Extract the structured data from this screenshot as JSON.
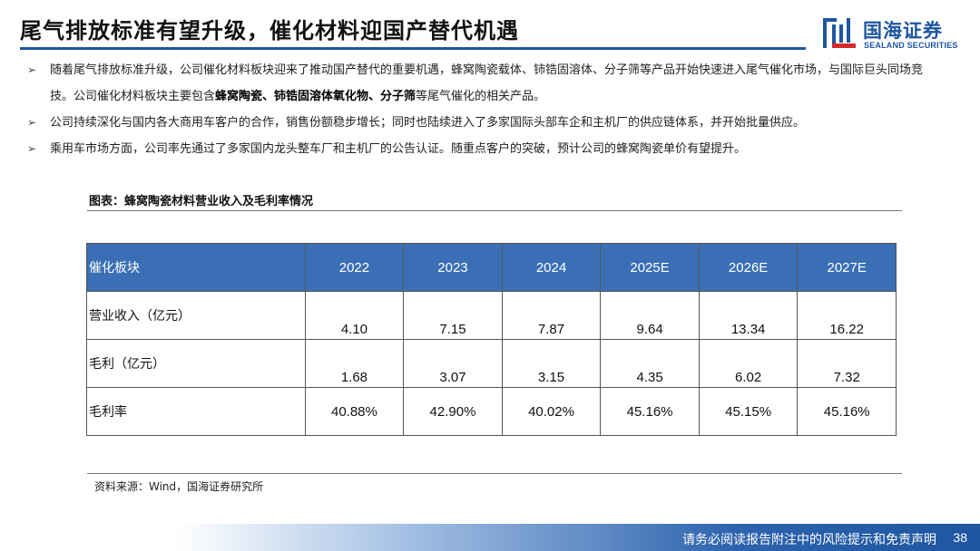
{
  "title": "尾气排放标准有望升级，催化材料迎国产替代机遇",
  "logo": {
    "cn": "国海证券",
    "en": "SEALAND SECURITIES"
  },
  "bullets": [
    {
      "segments": [
        "随着尾气排放标准升级，公司催化材料板块迎来了推动国产替代的重要机遇，蜂窝陶瓷载体、铈锆固溶体、分子筛等产品开始快速进入尾气催化市场，与国际巨头同场竞技。公司催化材料板块主要包含",
        "蜂窝陶瓷、铈锆固溶体氧化物、分子筛",
        "等尾气催化的相关产品。"
      ]
    },
    {
      "text": "公司持续深化与国内各大商用车客户的合作，销售份额稳步增长；同时也陆续进入了多家国际头部车企和主机厂的供应链体系，并开始批量供应。"
    },
    {
      "text": "乘用车市场方面，公司率先通过了多家国内龙头整车厂和主机厂的公告认证。随重点客户的突破，预计公司的蜂窝陶瓷单价有望提升。"
    }
  ],
  "figure_caption": "图表：蜂窝陶瓷材料营业收入及毛利率情况",
  "table": {
    "headers": [
      "催化板块",
      "2022",
      "2023",
      "2024",
      "2025E",
      "2026E",
      "2027E"
    ],
    "rows": [
      {
        "label": "营业收入（亿元）",
        "values": [
          "4.10",
          "7.15",
          "7.87",
          "9.64",
          "13.34",
          "16.22"
        ]
      },
      {
        "label": "毛利（亿元）",
        "values": [
          "1.68",
          "3.07",
          "3.15",
          "4.35",
          "6.02",
          "7.32"
        ]
      },
      {
        "label": "毛利率",
        "values": [
          "40.88%",
          "42.90%",
          "40.02%",
          "45.16%",
          "45.15%",
          "45.16%"
        ]
      }
    ]
  },
  "source": "资料来源：Wind，国海证券研究所",
  "footer": {
    "disclaimer": "请务必阅读报告附注中的风险提示和免责声明",
    "page": "38"
  },
  "colors": {
    "brand_blue": "#1e56a0",
    "header_blue": "#3a6fb5"
  },
  "icons": {
    "bullet": "arrow-bullet-icon",
    "logo": "sealand-logo-icon"
  }
}
